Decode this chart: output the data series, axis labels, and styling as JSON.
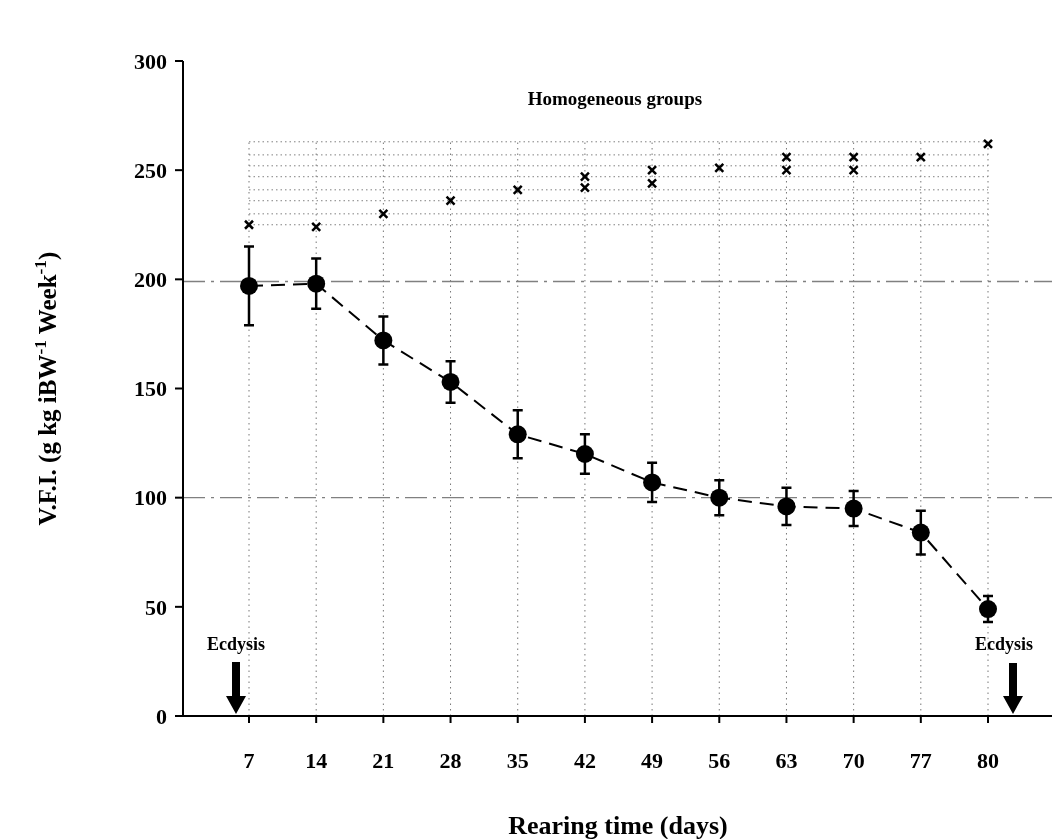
{
  "chart_data": {
    "type": "line",
    "xlabel": "Rearing time (days)",
    "ylabel": "V.F.I. (g kg iBW$^{-1}$ Week$^{-1}$)",
    "categories": [
      "7",
      "14",
      "21",
      "28",
      "35",
      "42",
      "49",
      "56",
      "63",
      "70",
      "77",
      "80"
    ],
    "ylim": [
      0,
      300
    ],
    "yticks": [
      0,
      50,
      100,
      150,
      200,
      250,
      300
    ],
    "grid": "x",
    "series": [
      {
        "type": "line",
        "color": "#000000",
        "marker": "circle",
        "line_style": "dashed",
        "values": [
          197,
          198,
          172,
          153,
          129,
          120,
          107,
          100,
          96,
          95,
          84,
          49
        ],
        "errors": [
          18,
          11.5,
          11,
          9.5,
          11,
          9,
          9,
          8,
          8.5,
          8,
          10,
          6
        ]
      },
      {
        "type": "scatter",
        "color": "#000000",
        "marker": "cross",
        "x": [
          "7",
          "14",
          "21",
          "28",
          "35",
          "42",
          "42",
          "49",
          "49",
          "56",
          "63",
          "63",
          "70",
          "70",
          "77",
          "80"
        ],
        "values": [
          225,
          224,
          230,
          236,
          241,
          247,
          242,
          250,
          244,
          251,
          256,
          250,
          256,
          250,
          256,
          262
        ]
      }
    ],
    "ref_lines": [
      {
        "axis": "y",
        "value": 199,
        "color": "#808080",
        "line_style": "dashdot"
      },
      {
        "axis": "y",
        "value": 100,
        "color": "#808080",
        "line_style": "dashdot"
      },
      {
        "axis": "y",
        "value": 225,
        "color": "#808080",
        "line_style": "dotted"
      },
      {
        "axis": "y",
        "value": 230,
        "color": "#808080",
        "line_style": "dotted"
      },
      {
        "axis": "y",
        "value": 236,
        "color": "#808080",
        "line_style": "dotted"
      },
      {
        "axis": "y",
        "value": 241,
        "color": "#808080",
        "line_style": "dotted"
      },
      {
        "axis": "y",
        "value": 247,
        "color": "#808080",
        "line_style": "dotted"
      },
      {
        "axis": "y",
        "value": 252,
        "color": "#808080",
        "line_style": "dotted"
      },
      {
        "axis": "y",
        "value": 257,
        "color": "#808080",
        "line_style": "dotted"
      },
      {
        "axis": "y",
        "value": 263,
        "color": "#808080",
        "line_style": "dotted"
      }
    ],
    "annotations": [
      "Homogeneous groups",
      "Ecdysis",
      "Ecdysis"
    ]
  }
}
